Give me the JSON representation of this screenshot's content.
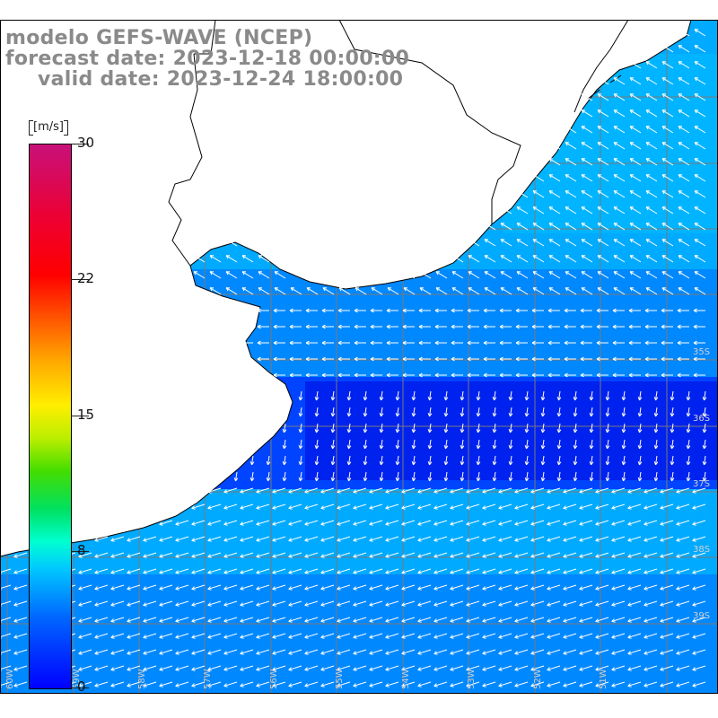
{
  "title": {
    "model": "modelo GEFS-WAVE (NCEP)",
    "forecast_date": "forecast date: 2023-12-18 00:00:00",
    "valid_date": "valid date: 2023-12-24 18:00:00"
  },
  "colorbar": {
    "unit": "[m/s]",
    "min": 0,
    "max": 30,
    "ticks": [
      "30",
      "22",
      "15",
      "8",
      "0"
    ],
    "colors": [
      "#0000ff",
      "#0066ff",
      "#00c8ff",
      "#00ffd0",
      "#00e060",
      "#bbee00",
      "#ffee00",
      "#ff5500",
      "#ff0000",
      "#c8107a"
    ]
  },
  "map": {
    "land_color": "#ffffff",
    "coastline_color": "#000000",
    "grid_color": "#7a7a7a",
    "arrow_color": "#ffffff",
    "field_colors": {
      "strong": "#00aaff",
      "medium": "#0088ff",
      "weak": "#0044ff",
      "calm": "#0022ee"
    },
    "lat_labels": [
      "35S",
      "36S",
      "37S",
      "38S",
      "39S"
    ],
    "lon_labels": [
      "60W",
      "59W",
      "58W",
      "57W",
      "56W",
      "55W",
      "54W",
      "53W",
      "52W",
      "51W"
    ]
  }
}
